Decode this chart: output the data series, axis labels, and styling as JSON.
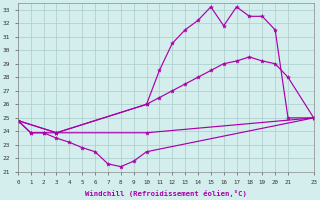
{
  "xlabel": "Windchill (Refroidissement éolien,°C)",
  "xlim": [
    0,
    23
  ],
  "ylim": [
    21,
    33.5
  ],
  "xticks": [
    0,
    1,
    2,
    3,
    4,
    5,
    6,
    7,
    8,
    9,
    10,
    11,
    12,
    13,
    14,
    15,
    16,
    17,
    18,
    19,
    20,
    21,
    23
  ],
  "yticks": [
    21,
    22,
    23,
    24,
    25,
    26,
    27,
    28,
    29,
    30,
    31,
    32,
    33
  ],
  "bg_color": "#d4eeee",
  "line_color": "#aa00aa",
  "grid_color": "#aacccc",
  "series": [
    {
      "x": [
        0,
        1,
        2,
        3,
        10,
        23
      ],
      "y": [
        24.8,
        23.9,
        23.9,
        23.9,
        23.9,
        25.0
      ]
    },
    {
      "x": [
        0,
        1,
        2,
        3,
        4,
        5,
        6,
        7,
        8,
        9,
        10,
        23
      ],
      "y": [
        24.8,
        23.9,
        23.9,
        23.5,
        23.2,
        22.8,
        22.5,
        21.6,
        21.4,
        21.8,
        22.5,
        25.0
      ]
    },
    {
      "x": [
        0,
        3,
        10,
        11,
        12,
        13,
        14,
        15,
        16,
        17,
        18,
        19,
        20,
        21,
        23
      ],
      "y": [
        24.8,
        23.9,
        26.0,
        26.5,
        27.0,
        27.5,
        28.0,
        28.5,
        29.0,
        29.2,
        29.5,
        29.2,
        29.0,
        28.0,
        25.0
      ]
    },
    {
      "x": [
        0,
        3,
        10,
        11,
        12,
        13,
        14,
        15,
        16,
        17,
        18,
        19,
        20,
        21,
        23
      ],
      "y": [
        24.8,
        23.9,
        26.0,
        28.5,
        30.5,
        31.5,
        32.2,
        33.2,
        31.8,
        33.2,
        32.5,
        32.5,
        31.5,
        25.0,
        25.0
      ]
    }
  ]
}
